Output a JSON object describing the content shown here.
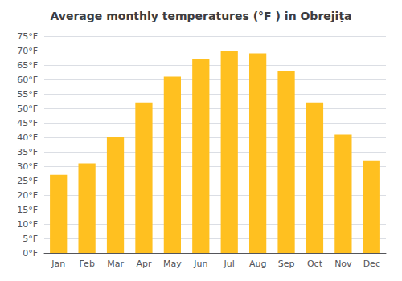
{
  "chart_data": {
    "type": "bar",
    "title": "Average monthly temperatures (°F ) in Obrejița",
    "categories": [
      "Jan",
      "Feb",
      "Mar",
      "Apr",
      "May",
      "Jun",
      "Jul",
      "Aug",
      "Sep",
      "Oct",
      "Nov",
      "Dec"
    ],
    "values": [
      27,
      31,
      40,
      52,
      61,
      67,
      70,
      69,
      63,
      52,
      41,
      32
    ],
    "color": "#FFC020",
    "ylim": [
      0,
      75
    ],
    "yticks": [
      {
        "value": 0,
        "label": "0°F"
      },
      {
        "value": 5,
        "label": "5°F"
      },
      {
        "value": 10,
        "label": "10°F"
      },
      {
        "value": 15,
        "label": "15°F"
      },
      {
        "value": 20,
        "label": "20°F"
      },
      {
        "value": 25,
        "label": "25°F"
      },
      {
        "value": 30,
        "label": "30°F"
      },
      {
        "value": 35,
        "label": "35°F"
      },
      {
        "value": 40,
        "label": "40°F"
      },
      {
        "value": 45,
        "label": "45°F"
      },
      {
        "value": 50,
        "label": "50°F"
      },
      {
        "value": 55,
        "label": "55°F"
      },
      {
        "value": 60,
        "label": "60°F"
      },
      {
        "value": 65,
        "label": "65°F"
      },
      {
        "value": 70,
        "label": "70°F"
      },
      {
        "value": 75,
        "label": "75°F"
      }
    ],
    "grid": true
  }
}
